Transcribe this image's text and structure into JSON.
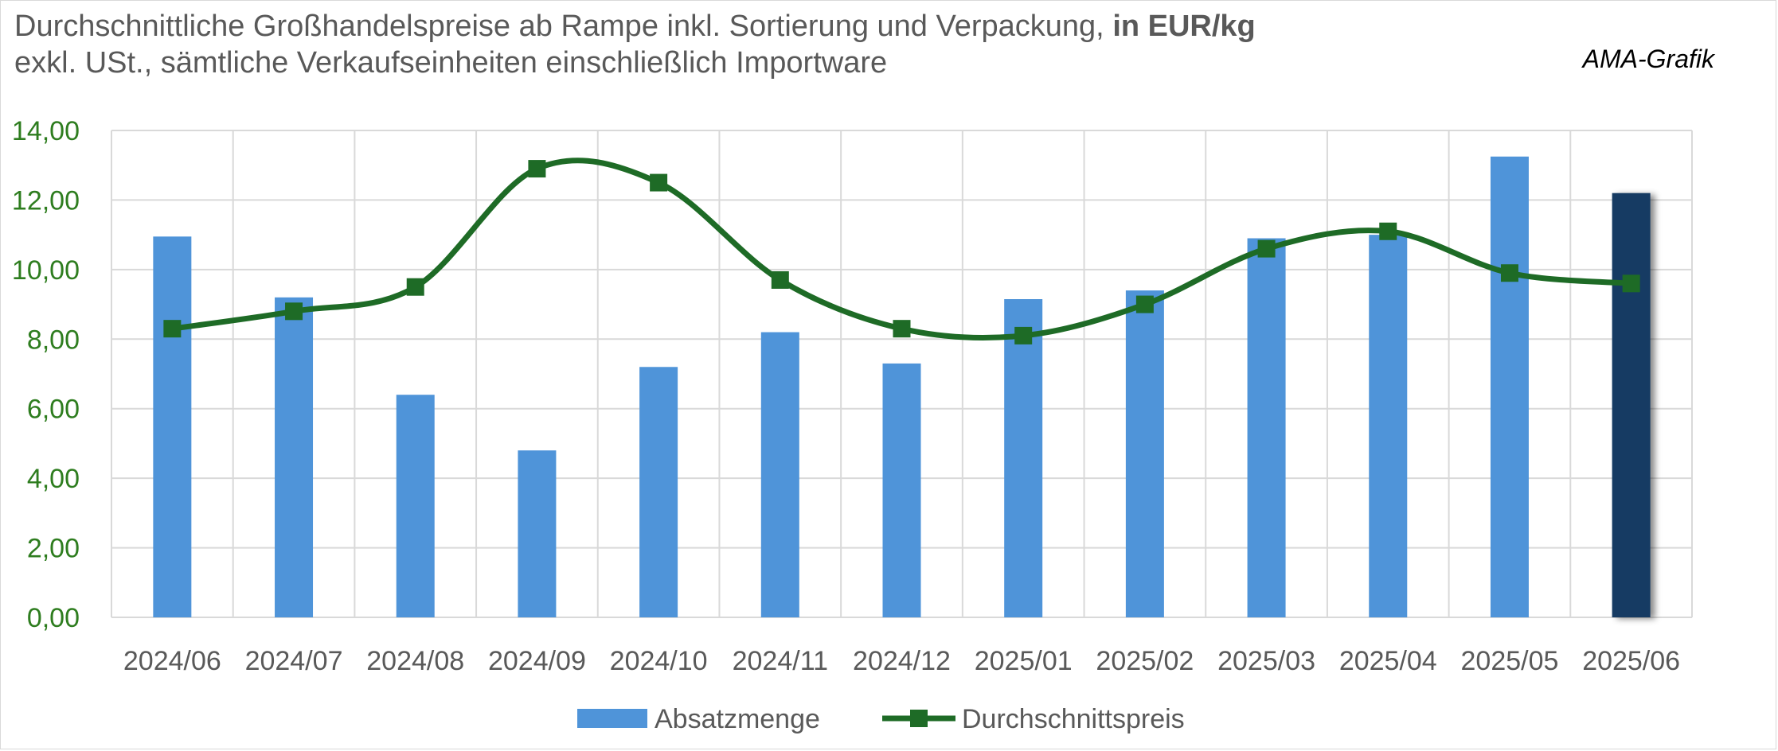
{
  "header": {
    "title_part1": "Durchschnittliche Großhandelspreise ab Rampe inkl. Sortierung und Verpackung, ",
    "title_bold": "in EUR/kg",
    "subtitle": "exkl. USt., sämtliche Verkaufseinheiten einschließlich Importware",
    "source": "AMA-Grafik"
  },
  "colors": {
    "bar": "#4f94d9",
    "bar_highlight": "#173b63",
    "line": "#1e6b26",
    "grid": "#d9d9d9",
    "ytick": "#2e7d1f",
    "xtick": "#595959"
  },
  "chart_data": {
    "type": "bar",
    "categories": [
      "2024/06",
      "2024/07",
      "2024/08",
      "2024/09",
      "2024/10",
      "2024/11",
      "2024/12",
      "2025/01",
      "2025/02",
      "2025/03",
      "2025/04",
      "2025/05",
      "2025/06"
    ],
    "series": [
      {
        "name": "Absatzmenge",
        "type": "bar",
        "values": [
          10.95,
          9.2,
          6.4,
          4.8,
          7.2,
          8.2,
          7.3,
          9.15,
          9.4,
          10.9,
          11.0,
          13.25,
          12.2
        ]
      },
      {
        "name": "Durchschnittspreis",
        "type": "line",
        "smooth": true,
        "marker": "square",
        "values": [
          8.3,
          8.8,
          9.5,
          12.9,
          12.5,
          9.7,
          8.3,
          8.1,
          9.0,
          10.6,
          11.1,
          9.9,
          9.6
        ]
      }
    ],
    "highlight_category": "2025/06",
    "ylim": [
      0,
      14
    ],
    "yticks": [
      "0,00",
      "2,00",
      "4,00",
      "6,00",
      "8,00",
      "10,00",
      "12,00",
      "14,00"
    ],
    "grid": true,
    "legend_position": "bottom"
  }
}
